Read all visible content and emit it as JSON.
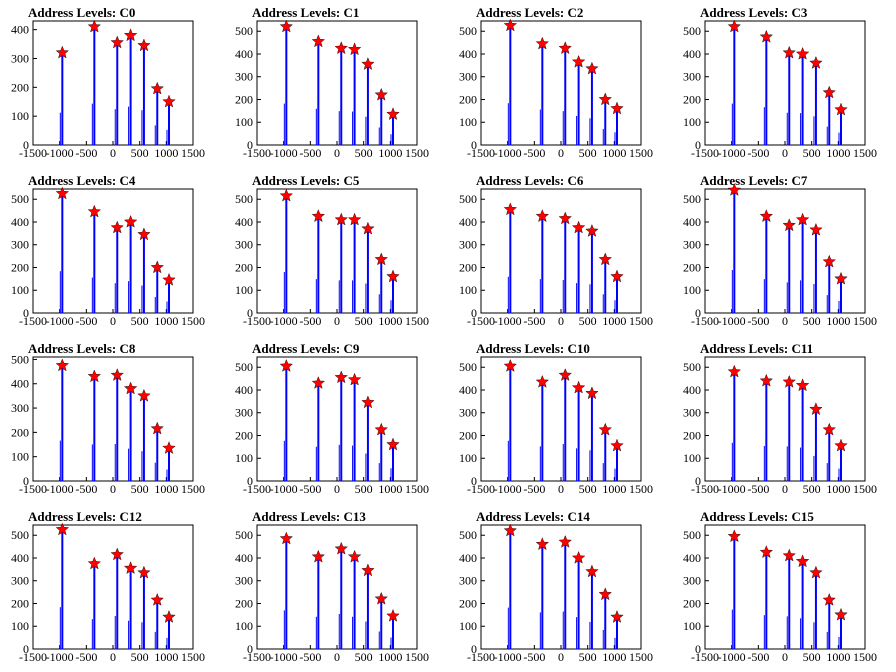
{
  "chart_data": [
    {
      "type": "bar",
      "title": "Address Levels: C0",
      "xlim": [
        -1500,
        1500
      ],
      "ylim": [
        0,
        430
      ],
      "xticks": [
        -1500,
        -1000,
        -500,
        0,
        500,
        1000,
        1500
      ],
      "yticks": [
        0,
        100,
        200,
        300,
        400
      ],
      "x": [
        -950,
        -350,
        80,
        330,
        580,
        830,
        1050
      ],
      "values": [
        320,
        410,
        355,
        380,
        345,
        195,
        150
      ]
    },
    {
      "type": "bar",
      "title": "Address Levels: C1",
      "xlim": [
        -1500,
        1500
      ],
      "ylim": [
        0,
        545
      ],
      "xticks": [
        -1500,
        -1000,
        -500,
        0,
        500,
        1000,
        1500
      ],
      "yticks": [
        0,
        100,
        200,
        300,
        400,
        500
      ],
      "x": [
        -950,
        -350,
        80,
        330,
        580,
        830,
        1050
      ],
      "values": [
        520,
        455,
        425,
        420,
        355,
        220,
        135
      ]
    },
    {
      "type": "bar",
      "title": "Address Levels: C2",
      "xlim": [
        -1500,
        1500
      ],
      "ylim": [
        0,
        545
      ],
      "xticks": [
        -1500,
        -1000,
        -500,
        0,
        500,
        1000,
        1500
      ],
      "yticks": [
        0,
        100,
        200,
        300,
        400,
        500
      ],
      "x": [
        -950,
        -350,
        80,
        330,
        580,
        830,
        1050
      ],
      "values": [
        525,
        445,
        425,
        365,
        335,
        200,
        160
      ]
    },
    {
      "type": "bar",
      "title": "Address Levels: C3",
      "xlim": [
        -1500,
        1500
      ],
      "ylim": [
        0,
        545
      ],
      "xticks": [
        -1500,
        -1000,
        -500,
        0,
        500,
        1000,
        1500
      ],
      "yticks": [
        0,
        100,
        200,
        300,
        400,
        500
      ],
      "x": [
        -950,
        -350,
        80,
        330,
        580,
        830,
        1050
      ],
      "values": [
        520,
        475,
        405,
        400,
        360,
        230,
        155
      ]
    },
    {
      "type": "bar",
      "title": "Address Levels: C4",
      "xlim": [
        -1500,
        1500
      ],
      "ylim": [
        0,
        545
      ],
      "xticks": [
        -1500,
        -1000,
        -500,
        0,
        500,
        1000,
        1500
      ],
      "yticks": [
        0,
        100,
        200,
        300,
        400,
        500
      ],
      "x": [
        -950,
        -350,
        80,
        330,
        580,
        830,
        1050
      ],
      "values": [
        525,
        445,
        375,
        400,
        345,
        200,
        145
      ]
    },
    {
      "type": "bar",
      "title": "Address Levels: C5",
      "xlim": [
        -1500,
        1500
      ],
      "ylim": [
        0,
        545
      ],
      "xticks": [
        -1500,
        -1000,
        -500,
        0,
        500,
        1000,
        1500
      ],
      "yticks": [
        0,
        100,
        200,
        300,
        400,
        500
      ],
      "x": [
        -950,
        -350,
        80,
        330,
        580,
        830,
        1050
      ],
      "values": [
        515,
        425,
        410,
        410,
        370,
        235,
        160
      ]
    },
    {
      "type": "bar",
      "title": "Address Levels: C6",
      "xlim": [
        -1500,
        1500
      ],
      "ylim": [
        0,
        545
      ],
      "xticks": [
        -1500,
        -1000,
        -500,
        0,
        500,
        1000,
        1500
      ],
      "yticks": [
        0,
        100,
        200,
        300,
        400,
        500
      ],
      "x": [
        -950,
        -350,
        80,
        330,
        580,
        830,
        1050
      ],
      "values": [
        455,
        425,
        415,
        375,
        360,
        235,
        160
      ]
    },
    {
      "type": "bar",
      "title": "Address Levels: C7",
      "xlim": [
        -1500,
        1500
      ],
      "ylim": [
        0,
        545
      ],
      "xticks": [
        -1500,
        -1000,
        -500,
        0,
        500,
        1000,
        1500
      ],
      "yticks": [
        0,
        100,
        200,
        300,
        400,
        500
      ],
      "x": [
        -950,
        -350,
        80,
        330,
        580,
        830,
        1050
      ],
      "values": [
        540,
        425,
        385,
        410,
        365,
        225,
        150
      ]
    },
    {
      "type": "bar",
      "title": "Address Levels: C8",
      "xlim": [
        -1500,
        1500
      ],
      "ylim": [
        0,
        510
      ],
      "xticks": [
        -1500,
        -1000,
        -500,
        0,
        500,
        1000,
        1500
      ],
      "yticks": [
        0,
        100,
        200,
        300,
        400,
        500
      ],
      "x": [
        -950,
        -350,
        80,
        330,
        580,
        830,
        1050
      ],
      "values": [
        475,
        430,
        435,
        380,
        350,
        215,
        135
      ]
    },
    {
      "type": "bar",
      "title": "Address Levels: C9",
      "xlim": [
        -1500,
        1500
      ],
      "ylim": [
        0,
        545
      ],
      "xticks": [
        -1500,
        -1000,
        -500,
        0,
        500,
        1000,
        1500
      ],
      "yticks": [
        0,
        100,
        200,
        300,
        400,
        500
      ],
      "x": [
        -950,
        -350,
        80,
        330,
        580,
        830,
        1050
      ],
      "values": [
        505,
        430,
        455,
        445,
        345,
        225,
        160
      ]
    },
    {
      "type": "bar",
      "title": "Address Levels: C10",
      "xlim": [
        -1500,
        1500
      ],
      "ylim": [
        0,
        545
      ],
      "xticks": [
        -1500,
        -1000,
        -500,
        0,
        500,
        1000,
        1500
      ],
      "yticks": [
        0,
        100,
        200,
        300,
        400,
        500
      ],
      "x": [
        -950,
        -350,
        80,
        330,
        580,
        830,
        1050
      ],
      "values": [
        505,
        435,
        465,
        410,
        385,
        225,
        155
      ]
    },
    {
      "type": "bar",
      "title": "Address Levels: C11",
      "xlim": [
        -1500,
        1500
      ],
      "ylim": [
        0,
        545
      ],
      "xticks": [
        -1500,
        -1000,
        -500,
        0,
        500,
        1000,
        1500
      ],
      "yticks": [
        0,
        100,
        200,
        300,
        400,
        500
      ],
      "x": [
        -950,
        -350,
        80,
        330,
        580,
        830,
        1050
      ],
      "values": [
        480,
        440,
        435,
        420,
        315,
        225,
        155
      ]
    },
    {
      "type": "bar",
      "title": "Address Levels: C12",
      "xlim": [
        -1500,
        1500
      ],
      "ylim": [
        0,
        545
      ],
      "xticks": [
        -1500,
        -1000,
        -500,
        0,
        500,
        1000,
        1500
      ],
      "yticks": [
        0,
        100,
        200,
        300,
        400,
        500
      ],
      "x": [
        -950,
        -350,
        80,
        330,
        580,
        830,
        1050
      ],
      "values": [
        525,
        375,
        415,
        355,
        335,
        215,
        140
      ]
    },
    {
      "type": "bar",
      "title": "Address Levels: C13",
      "xlim": [
        -1500,
        1500
      ],
      "ylim": [
        0,
        545
      ],
      "xticks": [
        -1500,
        -1000,
        -500,
        0,
        500,
        1000,
        1500
      ],
      "yticks": [
        0,
        100,
        200,
        300,
        400,
        500
      ],
      "x": [
        -950,
        -350,
        80,
        330,
        580,
        830,
        1050
      ],
      "values": [
        485,
        405,
        440,
        405,
        345,
        220,
        145
      ]
    },
    {
      "type": "bar",
      "title": "Address Levels: C14",
      "xlim": [
        -1500,
        1500
      ],
      "ylim": [
        0,
        545
      ],
      "xticks": [
        -1500,
        -1000,
        -500,
        0,
        500,
        1000,
        1500
      ],
      "yticks": [
        0,
        100,
        200,
        300,
        400,
        500
      ],
      "x": [
        -950,
        -350,
        80,
        330,
        580,
        830,
        1050
      ],
      "values": [
        520,
        460,
        470,
        400,
        340,
        240,
        140
      ]
    },
    {
      "type": "bar",
      "title": "Address Levels: C15",
      "xlim": [
        -1500,
        1500
      ],
      "ylim": [
        0,
        545
      ],
      "xticks": [
        -1500,
        -1000,
        -500,
        0,
        500,
        1000,
        1500
      ],
      "yticks": [
        0,
        100,
        200,
        300,
        400,
        500
      ],
      "x": [
        -950,
        -350,
        80,
        330,
        580,
        830,
        1050
      ],
      "values": [
        495,
        425,
        410,
        385,
        335,
        215,
        150
      ]
    }
  ],
  "colors": {
    "bars": "#0000ff",
    "markers": "#ff0000",
    "axes": "#000000"
  },
  "marker": "star-icon"
}
